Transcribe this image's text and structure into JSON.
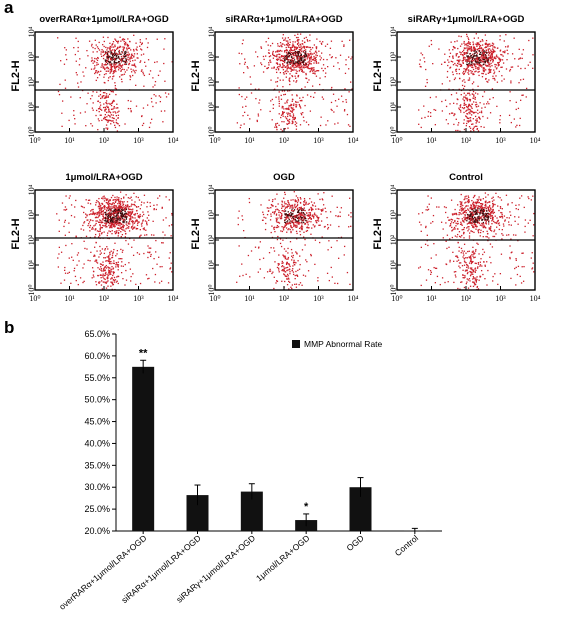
{
  "panel_a": {
    "label": "a",
    "plots": [
      {
        "title": "overRARα+1μmol/LRA+OGD",
        "ylabel": "FL2-H",
        "tick_labels": [
          "10⁰",
          "10¹",
          "10²",
          "10³",
          "10⁴"
        ],
        "cluster_density": "medium",
        "gate_level": 0.58
      },
      {
        "title": "siRARα+1μmol/LRA+OGD",
        "ylabel": "FL2-H",
        "tick_labels": [
          "10⁰",
          "10¹",
          "10²",
          "10³",
          "10⁴"
        ],
        "cluster_density": "high",
        "gate_level": 0.58
      },
      {
        "title": "siRARγ+1μmol/LRA+OGD",
        "ylabel": "FL2-H",
        "tick_labels": [
          "10⁰",
          "10¹",
          "10²",
          "10³",
          "10⁴"
        ],
        "cluster_density": "high",
        "gate_level": 0.58
      },
      {
        "title": "1μmol/LRA+OGD",
        "ylabel": "FL2-H",
        "tick_labels": [
          "10⁰",
          "10¹",
          "10²",
          "10³",
          "10⁴"
        ],
        "cluster_density": "very-high",
        "gate_level": 0.48
      },
      {
        "title": "OGD",
        "ylabel": "FL2-H",
        "tick_labels": [
          "10⁰",
          "10¹",
          "10²",
          "10³",
          "10⁴"
        ],
        "cluster_density": "medium",
        "gate_level": 0.48
      },
      {
        "title": "Control",
        "ylabel": "FL2-H",
        "tick_labels": [
          "10⁰",
          "10¹",
          "10²",
          "10³",
          "10⁴"
        ],
        "cluster_density": "high",
        "gate_level": 0.5
      }
    ],
    "dot_color": "#cc1f2a",
    "dense_color": "#3a0a0a"
  },
  "chart_data": {
    "type": "bar",
    "panel_label": "b",
    "legend": "MMP Abnormal Rate",
    "legend_position": "top-right",
    "categories": [
      "overRARα+1μmol/LRA+OGD",
      "siRARα+1μmol/LRA+OGD",
      "siRARγ+1μmol/LRA+OGD",
      "1μmol/LRA+OGD",
      "OGD",
      "Control"
    ],
    "values": [
      57.5,
      28.2,
      29.0,
      22.5,
      30.0,
      20.1
    ],
    "errors": [
      1.5,
      2.3,
      1.8,
      1.4,
      2.2,
      0.5
    ],
    "significance": [
      "**",
      "",
      "",
      "*",
      "",
      ""
    ],
    "ylim": [
      20.0,
      65.0
    ],
    "yticks": [
      "65.0%",
      "60.0%",
      "55.0%",
      "50.0%",
      "45.0%",
      "40.0%",
      "35.0%",
      "30.0%",
      "25.0%",
      "20.0%"
    ],
    "bar_color": "#111111"
  }
}
